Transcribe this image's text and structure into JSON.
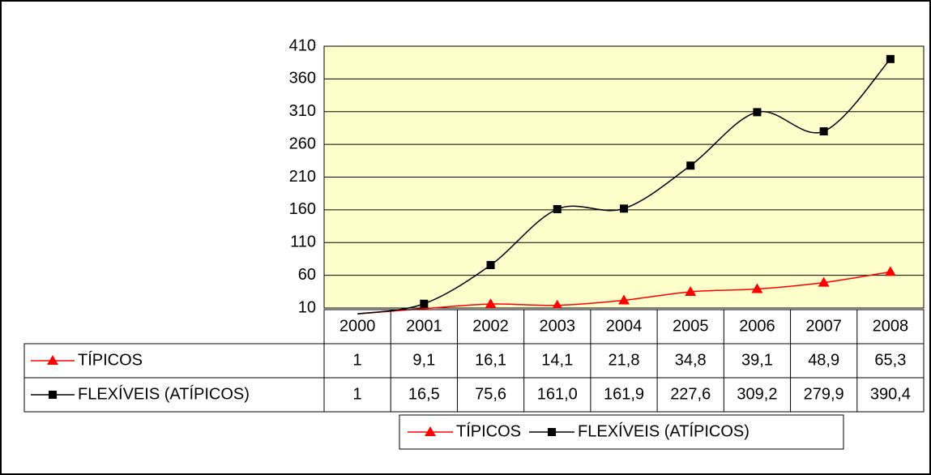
{
  "chart_data": {
    "type": "line",
    "categories": [
      "2000",
      "2001",
      "2002",
      "2003",
      "2004",
      "2005",
      "2006",
      "2007",
      "2008"
    ],
    "series": [
      {
        "name": "TÍPICOS",
        "color": "#ff0000",
        "marker": "triangle",
        "values": [
          1,
          9.1,
          16.1,
          14.1,
          21.8,
          34.8,
          39.1,
          48.9,
          65.3
        ],
        "value_labels": [
          "1",
          "9,1",
          "16,1",
          "14,1",
          "21,8",
          "34,8",
          "39,1",
          "48,9",
          "65,3"
        ]
      },
      {
        "name": "FLEXÍVEIS (ATÍPICOS)",
        "color": "#000000",
        "marker": "square",
        "values": [
          1,
          16.5,
          75.6,
          161.0,
          161.9,
          227.6,
          309.2,
          279.9,
          390.4
        ],
        "value_labels": [
          "1",
          "16,5",
          "75,6",
          "161,0",
          "161,9",
          "227,6",
          "309,2",
          "279,9",
          "390,4"
        ]
      }
    ],
    "ylim": [
      10,
      410
    ],
    "yticks": [
      10,
      60,
      110,
      160,
      210,
      260,
      310,
      360,
      410
    ],
    "grid": true,
    "plot_background": "#ffffcc",
    "smooth": true,
    "data_table": true,
    "legend": "bottom"
  }
}
